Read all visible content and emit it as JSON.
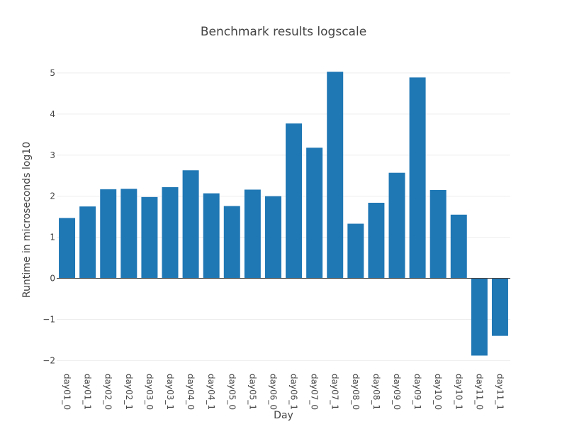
{
  "chart_data": {
    "type": "bar",
    "title": "Benchmark results logscale",
    "xlabel": "Day",
    "ylabel": "Runtime in microseconds log10",
    "categories": [
      "day01_0",
      "day01_1",
      "day02_0",
      "day02_1",
      "day03_0",
      "day03_1",
      "day04_0",
      "day04_1",
      "day05_0",
      "day05_1",
      "day06_0",
      "day06_1",
      "day07_0",
      "day07_1",
      "day08_0",
      "day08_1",
      "day09_0",
      "day09_1",
      "day10_0",
      "day10_1",
      "day11_0",
      "day11_1"
    ],
    "values": [
      1.47,
      1.75,
      2.17,
      2.18,
      1.98,
      2.22,
      2.63,
      2.07,
      1.76,
      2.16,
      2.0,
      3.77,
      3.18,
      5.03,
      1.33,
      1.84,
      2.57,
      4.89,
      2.15,
      1.55,
      -1.88,
      -1.4
    ],
    "ylim": [
      -2.2,
      5.05
    ],
    "yticks": [
      5,
      4,
      3,
      2,
      1,
      0,
      -1,
      -2
    ],
    "ytick_labels": [
      "5",
      "4",
      "3",
      "2",
      "1",
      "0",
      "−1",
      "−2"
    ],
    "bar_color": "#1f77b4",
    "grid": true
  }
}
